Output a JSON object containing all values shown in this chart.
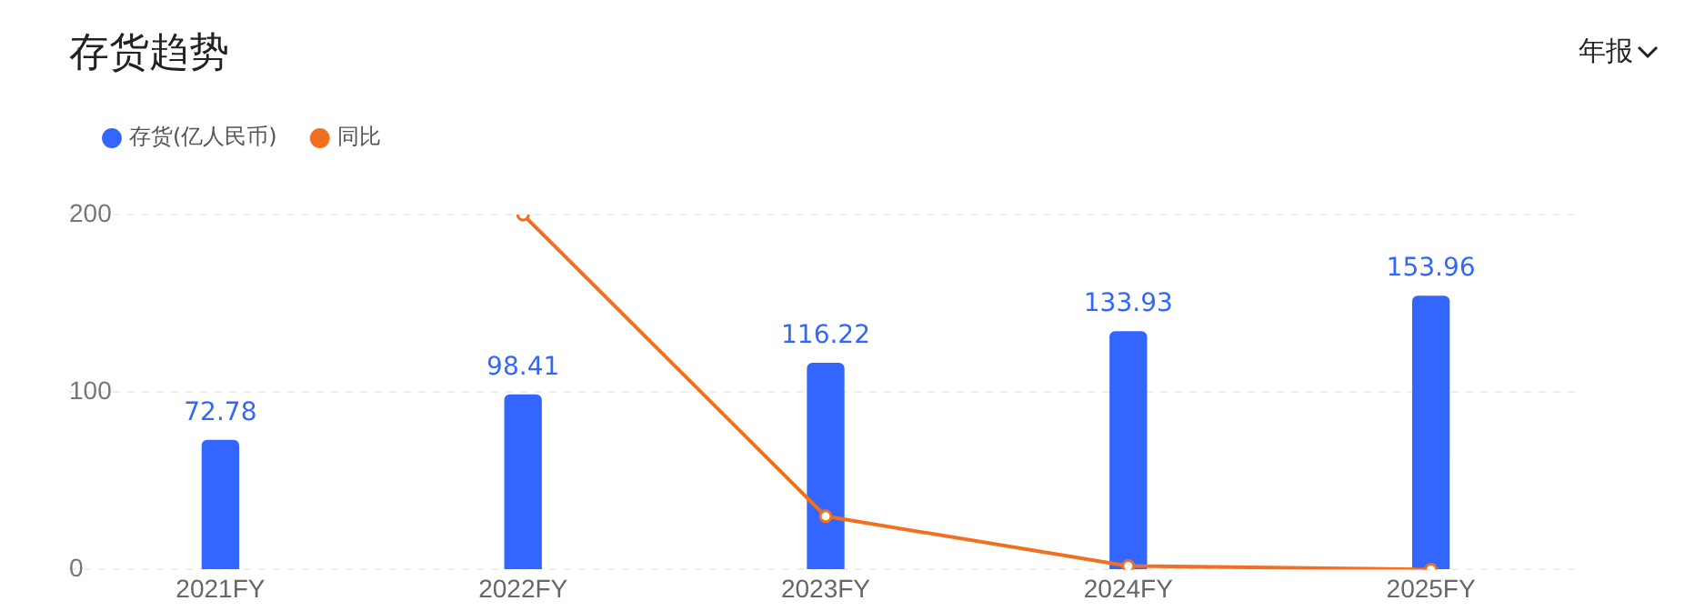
{
  "chart_data": {
    "type": "bar",
    "title": "存货趋势",
    "annotations": [
      "年报"
    ],
    "categories": [
      "2021FY",
      "2022FY",
      "2023FY",
      "2024FY",
      "2025FY"
    ],
    "series": [
      {
        "name": "存货(亿人民币)",
        "color": "#3366ff",
        "values": [
          72.78,
          98.41,
          116.22,
          133.93,
          153.96
        ],
        "value_labels": [
          "72.78",
          "98.41",
          "116.22",
          "133.93",
          "153.96"
        ]
      },
      {
        "name": "同比",
        "type": "line",
        "color": "#f07020",
        "values": [
          null,
          200,
          30,
          2,
          0
        ]
      }
    ],
    "ylim": [
      0,
      200
    ],
    "yticks": [
      0,
      100,
      200
    ],
    "grid": "y",
    "legend": "top left",
    "marker": "circle",
    "line_style": "solid"
  }
}
